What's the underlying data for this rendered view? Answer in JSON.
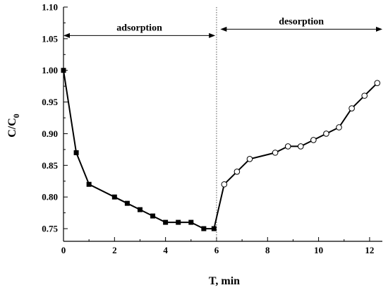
{
  "chart_data": {
    "type": "line",
    "xlabel": "T, min",
    "ylabel": "C/C",
    "ylabel_sub": "0",
    "xlim": [
      0,
      12.5
    ],
    "ylim": [
      0.73,
      1.1
    ],
    "xticks": [
      0,
      2,
      4,
      6,
      8,
      10,
      12
    ],
    "yticks": [
      0.75,
      0.8,
      0.85,
      0.9,
      0.95,
      1.0,
      1.05,
      1.1
    ],
    "grid": false,
    "divider_x": 6.0,
    "annotations": [
      {
        "text": "adsorption",
        "x_from": 0,
        "x_to": 5.95,
        "y": 1.055
      },
      {
        "text": "desorption",
        "x_from": 6.15,
        "x_to": 12.5,
        "y": 1.065
      }
    ],
    "series": [
      {
        "marker": "filled-square",
        "x": [
          0,
          0.5,
          1.0,
          2.0,
          2.5,
          3.0,
          3.5,
          4.0,
          4.5,
          5.0,
          5.5,
          5.9
        ],
        "y": [
          1.0,
          0.87,
          0.82,
          0.8,
          0.79,
          0.78,
          0.77,
          0.76,
          0.76,
          0.76,
          0.75,
          0.75
        ]
      },
      {
        "marker": "open-circle",
        "x": [
          6.3,
          6.8,
          7.3,
          8.3,
          8.8,
          9.3,
          9.8,
          10.3,
          10.8,
          11.3,
          11.8,
          12.3
        ],
        "y": [
          0.82,
          0.84,
          0.86,
          0.87,
          0.88,
          0.88,
          0.89,
          0.9,
          0.91,
          0.94,
          0.96,
          0.98
        ]
      }
    ],
    "bridge": {
      "from": [
        5.9,
        0.75
      ],
      "to": [
        6.3,
        0.82
      ]
    }
  }
}
